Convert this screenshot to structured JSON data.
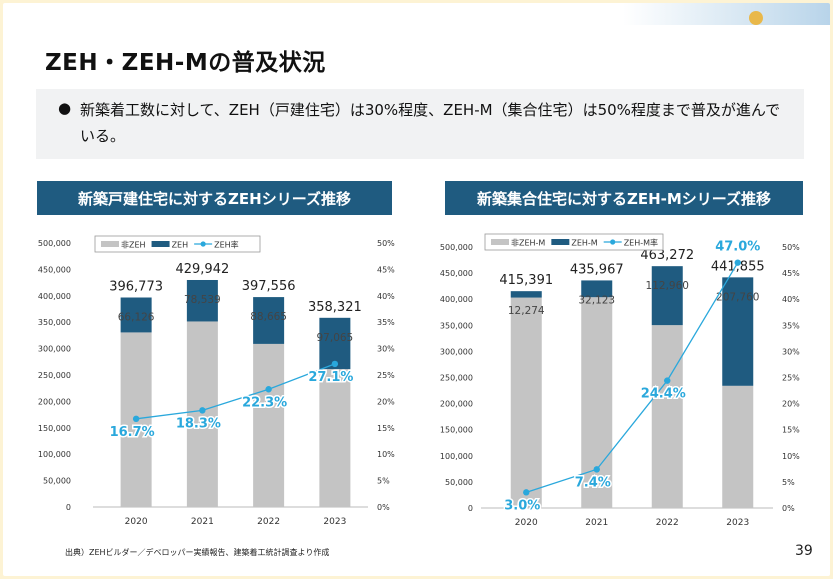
{
  "slide": {
    "title": "ZEH・ZEH-Mの普及状況",
    "bullet": "新築着工数に対して、ZEH（戸建住宅）は30%程度、ZEH-M（集合住宅）は50%程度まで普及が進んでいる。",
    "source": "出典）ZEHビルダー／デベロッパー実績報告、建築着工統計調査より作成",
    "page_number": "39"
  },
  "colors": {
    "non_zeh": "#c4c4c4",
    "zeh": "#1f5b80",
    "rate": "#2aa8dc",
    "header": "#1f5b80"
  },
  "chart_data": [
    {
      "type": "bar",
      "stacked": true,
      "title": "新築戸建住宅に対するZEHシリーズ推移",
      "categories": [
        "2020",
        "2021",
        "2022",
        "2023"
      ],
      "series": [
        {
          "name": "非ZEH",
          "values": [
            330647,
            351403,
            308891,
            261256
          ]
        },
        {
          "name": "ZEH",
          "values": [
            66126,
            78539,
            88665,
            97065
          ]
        },
        {
          "name": "ZEH率",
          "axis": "right",
          "values": [
            16.7,
            18.3,
            22.3,
            27.1
          ]
        }
      ],
      "totals": [
        "396,773",
        "429,942",
        "397,556",
        "358,321"
      ],
      "zeh_labels": [
        "66,126",
        "78,539",
        "88,665",
        "97,065"
      ],
      "rate_labels": [
        "16.7%",
        "18.3%",
        "22.3%",
        "27.1%"
      ],
      "ylim": [
        0,
        500000
      ],
      "y2lim": [
        0,
        50
      ],
      "y_ticks": [
        "0",
        "50,000",
        "100,000",
        "150,000",
        "200,000",
        "250,000",
        "300,000",
        "350,000",
        "400,000",
        "450,000",
        "500,000"
      ],
      "y2_ticks": [
        "0%",
        "5%",
        "10%",
        "15%",
        "20%",
        "25%",
        "30%",
        "35%",
        "40%",
        "45%",
        "50%"
      ],
      "legend": [
        "非ZEH",
        "ZEH",
        "ZEH率"
      ],
      "legend_position": "top-left"
    },
    {
      "type": "bar",
      "stacked": true,
      "title": "新築集合住宅に対するZEH-Mシリーズ推移",
      "categories": [
        "2020",
        "2021",
        "2022",
        "2023"
      ],
      "series": [
        {
          "name": "非ZEH-M",
          "values": [
            403117,
            403844,
            350312,
            234095
          ]
        },
        {
          "name": "ZEH-M",
          "values": [
            12274,
            32123,
            112960,
            207760
          ]
        },
        {
          "name": "ZEH-M率",
          "axis": "right",
          "values": [
            3.0,
            7.4,
            24.4,
            47.0
          ]
        }
      ],
      "totals": [
        "415,391",
        "435,967",
        "463,272",
        "441,855"
      ],
      "zeh_labels": [
        "12,274",
        "32,123",
        "112,960",
        "207,760"
      ],
      "rate_labels": [
        "3.0%",
        "7.4%",
        "24.4%",
        "47.0%"
      ],
      "ylim": [
        0,
        500000
      ],
      "y2lim": [
        0,
        50
      ],
      "y_ticks": [
        "0",
        "50,000",
        "100,000",
        "150,000",
        "200,000",
        "250,000",
        "300,000",
        "350,000",
        "400,000",
        "450,000",
        "500,000"
      ],
      "y2_ticks": [
        "0%",
        "5%",
        "10%",
        "15%",
        "20%",
        "25%",
        "30%",
        "35%",
        "40%",
        "45%",
        "50%"
      ],
      "legend": [
        "非ZEH-M",
        "ZEH-M",
        "ZEH-M率"
      ],
      "legend_position": "top-left"
    }
  ]
}
